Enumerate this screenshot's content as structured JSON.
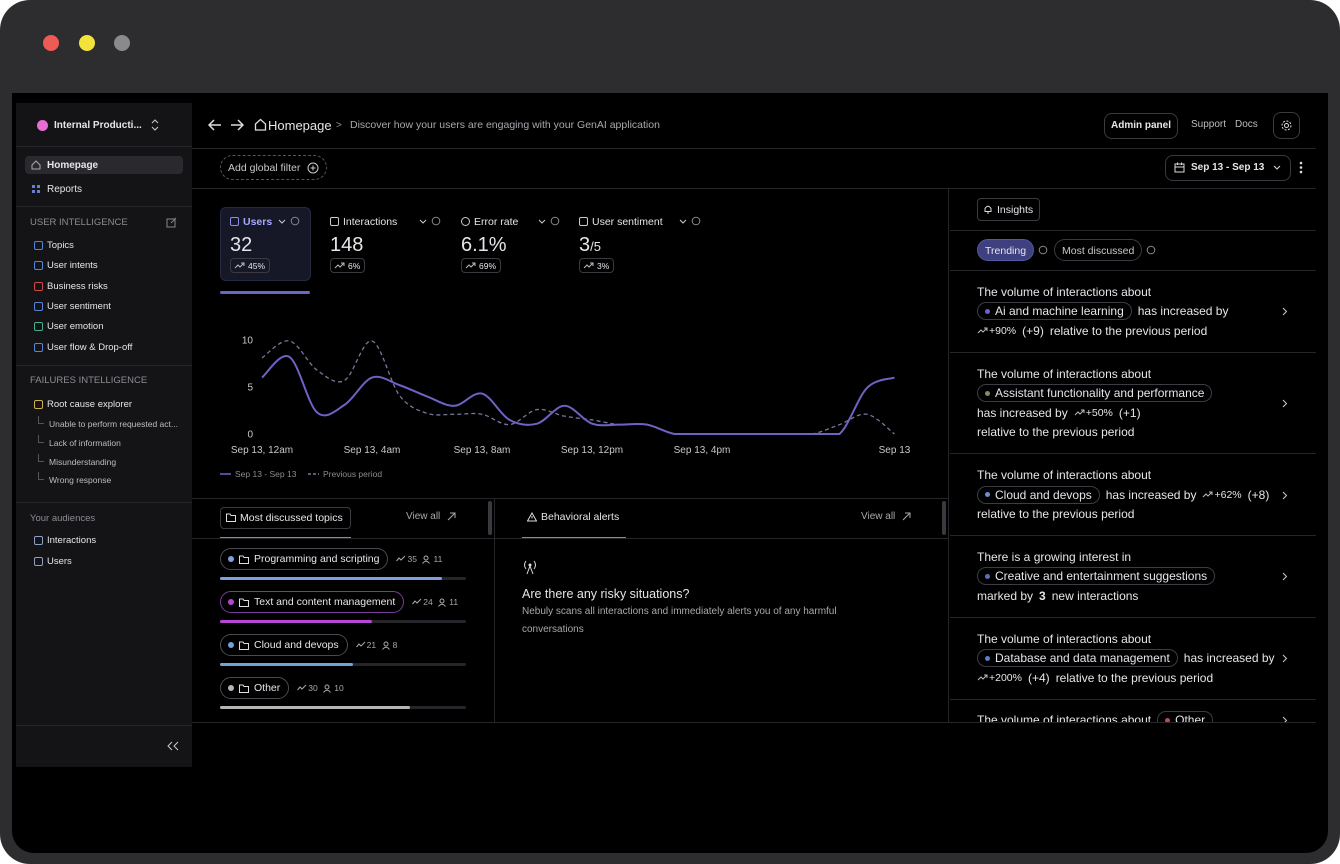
{
  "sidebar": {
    "workspace": "Internal Producti...",
    "main_nav": [
      "Homepage",
      "Reports"
    ],
    "sections": [
      {
        "title": "USER INTELLIGENCE",
        "items": [
          "Topics",
          "User intents",
          "Business risks",
          "User sentiment",
          "User emotion",
          "User flow & Drop-off"
        ]
      },
      {
        "title": "FAILURES INTELLIGENCE",
        "items": [
          "Root cause explorer"
        ],
        "subitems": [
          "Unable to perform requested act...",
          "Lack of information",
          "Misunderstanding",
          "Wrong response"
        ]
      },
      {
        "title": "Your audiences",
        "items": [
          "Interactions",
          "Users"
        ]
      }
    ]
  },
  "header": {
    "page": "Homepage",
    "separator": ">",
    "description": "Discover how your users are engaging with your GenAI application",
    "admin": "Admin panel",
    "links": [
      "Support",
      "Docs"
    ]
  },
  "toolbar": {
    "filter": "Add global filter",
    "date_range": "Sep 13 - Sep 13"
  },
  "metrics": [
    {
      "label": "Users",
      "value": "32",
      "change": "45%"
    },
    {
      "label": "Interactions",
      "value": "148",
      "change": "6%"
    },
    {
      "label": "Error rate",
      "value": "6.1%",
      "change": "69%"
    },
    {
      "label": "User sentiment",
      "value": "3",
      "suffix": "/5",
      "change": "3%"
    }
  ],
  "chart_data": {
    "type": "line",
    "categories": [
      "Sep 13, 12am",
      null,
      null,
      null,
      "Sep 13, 4am",
      null,
      null,
      null,
      "Sep 13, 8am",
      null,
      null,
      null,
      "Sep 13, 12pm",
      null,
      null,
      null,
      "Sep 13, 4pm",
      null,
      null,
      null,
      null,
      null,
      null,
      "Sep 13"
    ],
    "series": [
      {
        "name": "Sep 13 - Sep 13",
        "color": "#6e62c4",
        "dashed": false,
        "values": [
          6.0,
          8.2,
          2.3,
          3.1,
          6.0,
          5.2,
          4.0,
          3.0,
          4.3,
          1.5,
          1.1,
          3.0,
          1.1,
          1.0,
          1.0,
          0,
          0,
          0,
          0,
          0,
          0,
          0,
          4.9,
          6.0
        ]
      },
      {
        "name": "Previous period",
        "color": "#77779a",
        "dashed": true,
        "values": [
          8.1,
          9.9,
          6.8,
          5.7,
          9.9,
          4.1,
          2.2,
          2.1,
          2.1,
          1.0,
          2.6,
          1.9,
          1.5,
          1.0,
          1.0,
          0,
          0,
          0,
          0,
          0,
          0,
          1.0,
          2.1,
          0
        ]
      }
    ],
    "ylim": [
      0,
      10
    ],
    "yticks": [
      0,
      5,
      10
    ],
    "grid": false
  },
  "topics": {
    "tab": "Most discussed topics",
    "view_all": "View all",
    "items": [
      {
        "name": "Programming and scripting",
        "interactions": 35,
        "users": 11,
        "color": "#7f9fe0"
      },
      {
        "name": "Text and content management",
        "interactions": 24,
        "users": 11,
        "color": "#b845d4"
      },
      {
        "name": "Cloud and devops",
        "interactions": 21,
        "users": 8,
        "color": "#6fa3dc"
      },
      {
        "name": "Other",
        "interactions": 30,
        "users": 10,
        "color": "#b5b5b8"
      }
    ]
  },
  "alerts": {
    "tab": "Behavioral alerts",
    "view_all": "View all",
    "heading": "Are there any risky situations?",
    "body": "Nebuly scans all interactions and immediately alerts you of any harmful conversations"
  },
  "insights": {
    "tab": "Insights",
    "filters": [
      "Trending",
      "Most discussed"
    ],
    "items": [
      {
        "lines": [
          [
            {
              "text": "The volume of interactions about"
            }
          ],
          [
            {
              "topic": "Ai and machine learning",
              "color": "#7b5cc9"
            },
            {
              "text": "has increased by"
            }
          ],
          [
            {
              "trend": "+90%"
            },
            {
              "text": "(+9)"
            },
            {
              "text": "relative to the previous period"
            }
          ]
        ]
      },
      {
        "lines": [
          [
            {
              "text": "The volume of interactions about"
            }
          ],
          [
            {
              "topic": "Assistant functionality and performance",
              "color": "#8c8a5c"
            }
          ],
          [
            {
              "text": "has increased by"
            },
            {
              "trend": "+50%"
            },
            {
              "text": "(+1)"
            }
          ],
          [
            {
              "text": "relative to the previous period"
            }
          ]
        ]
      },
      {
        "lines": [
          [
            {
              "text": "The volume of interactions about"
            }
          ],
          [
            {
              "topic": "Cloud and devops",
              "color": "#6a8fd0"
            },
            {
              "text": "has increased by"
            },
            {
              "trend": "+62%"
            },
            {
              "text": "(+8)"
            }
          ],
          [
            {
              "text": "relative to the previous period"
            }
          ]
        ]
      },
      {
        "lines": [
          [
            {
              "text": "There is a growing interest in"
            }
          ],
          [
            {
              "topic": "Creative and entertainment suggestions",
              "color": "#5a6fb8"
            }
          ],
          [
            {
              "text": "marked by"
            },
            {
              "bold": "3"
            },
            {
              "text": "new interactions"
            }
          ]
        ]
      },
      {
        "lines": [
          [
            {
              "text": "The volume of interactions about"
            }
          ],
          [
            {
              "topic": "Database and data management",
              "color": "#5b7fc0"
            },
            {
              "text": "has increased by"
            }
          ],
          [
            {
              "trend": "+200%"
            },
            {
              "text": "(+4)"
            },
            {
              "text": "relative to the previous period"
            }
          ]
        ]
      },
      {
        "lines": [
          [
            {
              "text": "The volume of interactions about"
            },
            {
              "topic": "Other",
              "color": "#c44848"
            }
          ]
        ]
      }
    ]
  }
}
